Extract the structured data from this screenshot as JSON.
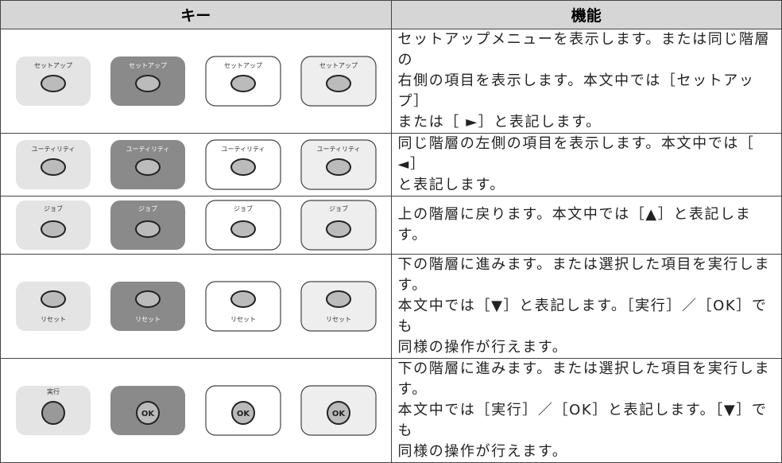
{
  "table": {
    "header": [
      "キー",
      "機能"
    ],
    "rows": [
      {
        "keys": [
          {
            "label": "セットアップ"
          },
          {
            "label": "セットアップ"
          },
          {
            "label": "セットアップ"
          },
          {
            "label": "セットアップ"
          }
        ],
        "lines": [
          "セットアップメニューを表示します。または同じ階層の",
          "右側の項目を表示します。本文中では［セットアップ］",
          "または［ ►］と表記します。"
        ]
      },
      {
        "keys": [
          {
            "label": "ユーティリティ"
          },
          {
            "label": "ユーティリティ"
          },
          {
            "label": "ユーティリティ"
          },
          {
            "label": "ユーティリティ"
          }
        ],
        "lines": [
          "同じ階層の左側の項目を表示します。本文中では［ ◄］",
          "と表記します。"
        ]
      },
      {
        "keys": [
          {
            "label": "ジョブ"
          },
          {
            "label": "ジョブ"
          },
          {
            "label": "ジョブ"
          },
          {
            "label": "ジョブ"
          }
        ],
        "lines": [
          "上の階層に戻ります。本文中では［▲］と表記します。"
        ]
      },
      {
        "keys": [
          {
            "label": "リセット"
          },
          {
            "label": "リセット"
          },
          {
            "label": "リセット"
          },
          {
            "label": "リセット"
          }
        ],
        "lines": [
          "下の階層に進みます。または選択した項目を実行します。",
          "本文中では［▼］と表記します。［実行］／［OK］でも",
          "同様の操作が行えます。"
        ]
      },
      {
        "keys": [
          {
            "label": "実行"
          },
          {
            "label": "OK"
          },
          {
            "label": "OK"
          },
          {
            "label": "OK"
          }
        ],
        "lines": [
          "下の階層に進みます。または選択した項目を実行します。",
          "本文中では［実行］／［OK］と表記します。［▼］でも",
          "同様の操作が行えます。"
        ]
      }
    ]
  }
}
